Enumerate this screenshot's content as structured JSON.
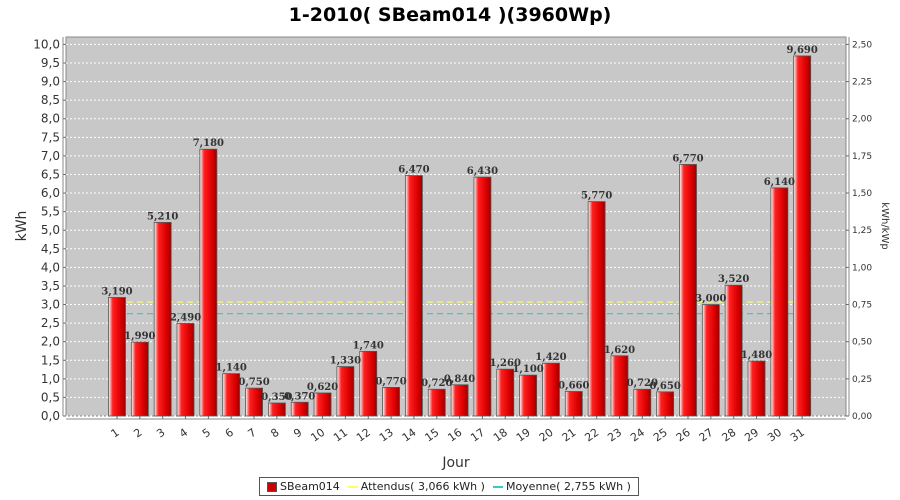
{
  "chart_data": {
    "type": "bar",
    "title": "1-2010( SBeam014 )(3960Wp)",
    "xlabel": "Jour",
    "ylabel": "kWh",
    "ylabel_right": "kWh/kWp",
    "ylim": [
      0,
      10.2
    ],
    "ylim_right": [
      0,
      2.55
    ],
    "yticks": [
      "0,0",
      "0,5",
      "1,0",
      "1,5",
      "2,0",
      "2,5",
      "3,0",
      "3,5",
      "4,0",
      "4,5",
      "5,0",
      "5,5",
      "6,0",
      "6,5",
      "7,0",
      "7,5",
      "8,0",
      "8,5",
      "9,0",
      "9,5",
      "10,0"
    ],
    "yticks_right": [
      "0,00",
      "0,25",
      "0,50",
      "0,75",
      "1,00",
      "1,25",
      "1,50",
      "1,75",
      "2,00",
      "2,25",
      "2,50"
    ],
    "categories": [
      "1",
      "2",
      "3",
      "4",
      "5",
      "6",
      "7",
      "8",
      "9",
      "10",
      "11",
      "12",
      "13",
      "14",
      "15",
      "16",
      "17",
      "18",
      "19",
      "20",
      "21",
      "22",
      "23",
      "24",
      "25",
      "26",
      "27",
      "28",
      "29",
      "30",
      "31"
    ],
    "series": [
      {
        "name": "SBeam014",
        "color": "#e00000",
        "values": [
          3.19,
          1.99,
          5.21,
          2.49,
          7.18,
          1.14,
          0.75,
          0.35,
          0.37,
          0.62,
          1.33,
          1.74,
          0.77,
          6.47,
          0.72,
          0.84,
          6.43,
          1.26,
          1.1,
          1.42,
          0.66,
          5.77,
          1.62,
          0.72,
          0.65,
          6.77,
          3.0,
          3.52,
          1.48,
          6.14,
          9.69
        ],
        "labels": [
          "3,190",
          "1,990",
          "5,210",
          "2,490",
          "7,180",
          "1,140",
          "0,750",
          "0,350",
          "0,370",
          "0,620",
          "1,330",
          "1,740",
          "0,770",
          "6,470",
          "0,720",
          "0,840",
          "6,430",
          "1,260",
          "1,100",
          "1,420",
          "0,660",
          "5,770",
          "1,620",
          "0,720",
          "0,650",
          "6,770",
          "3,000",
          "3,520",
          "1,480",
          "6,140",
          "9,690"
        ]
      }
    ],
    "reference_lines": [
      {
        "name": "Attendus( 3,066 kWh )",
        "value": 3.066,
        "color": "#ffff66",
        "style": "dashed"
      },
      {
        "name": "Moyenne( 2,755 kWh )",
        "value": 2.755,
        "color": "#33cccc",
        "style": "dashed"
      }
    ],
    "grid": true,
    "legend_position": "bottom",
    "plot_background": "#c8c8c8"
  }
}
